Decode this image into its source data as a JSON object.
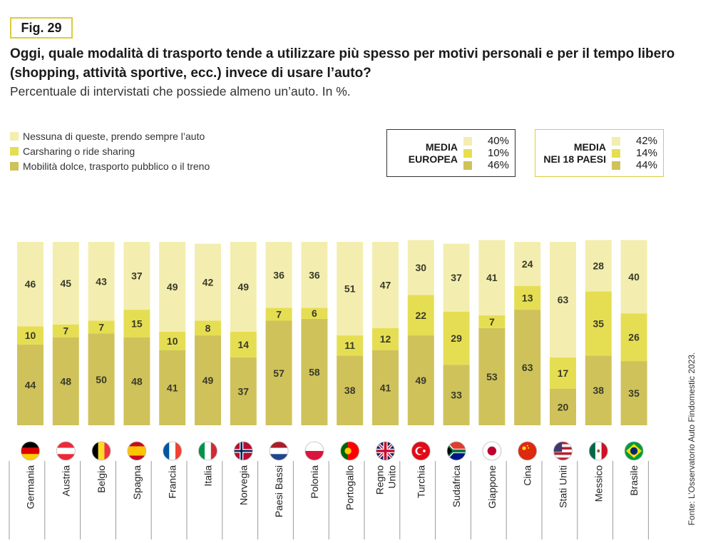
{
  "figure": {
    "badge": "Fig. 29",
    "title": "Oggi, quale modalità di trasporto tende a utilizzare più spesso per motivi personali e per il tempo libero (shopping, attività sportive, ecc.) invece di usare l’auto?",
    "subtitle": "Percentuale di intervistati che possiede almeno un’auto. In %.",
    "source": "Fonte: L’Osservatorio Auto Findomestic 2023."
  },
  "colors": {
    "nessuna": "#f3eeaf",
    "carsharing": "#e6de52",
    "dolce": "#cfc25a",
    "accent_border": "#dccb3c"
  },
  "legend": [
    {
      "label": "Nessuna di queste, prendo sempre l’auto",
      "color": "#f3eeaf"
    },
    {
      "label": "Carsharing o ride sharing",
      "color": "#e6de52"
    },
    {
      "label": "Mobilità dolce, trasporto pubblico o il treno",
      "color": "#cfc25a"
    }
  ],
  "averages": [
    {
      "label_lines": [
        "MEDIA",
        "EUROPEA"
      ],
      "values": [
        "40%",
        "10%",
        "46%"
      ]
    },
    {
      "label_lines": [
        "MEDIA",
        "NEI 18 PAESI"
      ],
      "values": [
        "42%",
        "14%",
        "44%"
      ]
    }
  ],
  "chart_data": {
    "type": "bar",
    "stacked": true,
    "orientation": "vertical",
    "categories": [
      "Germania",
      "Austria",
      "Belgio",
      "Spagna",
      "Francia",
      "Italia",
      "Norvegia",
      "Paesi Bassi",
      "Polonia",
      "Portogallo",
      "Regno Unito",
      "Turchia",
      "Sudafrica",
      "Giappone",
      "Cina",
      "Stati Uniti",
      "Messico",
      "Brasile"
    ],
    "series": [
      {
        "name": "Mobilità dolce, trasporto pubblico o il treno",
        "color": "#cfc25a",
        "values": [
          44,
          48,
          50,
          48,
          41,
          49,
          37,
          57,
          58,
          38,
          41,
          49,
          33,
          53,
          63,
          20,
          38,
          35
        ]
      },
      {
        "name": "Carsharing o ride sharing",
        "color": "#e6de52",
        "values": [
          10,
          7,
          7,
          15,
          10,
          8,
          14,
          7,
          6,
          11,
          12,
          22,
          29,
          7,
          13,
          17,
          35,
          26
        ]
      },
      {
        "name": "Nessuna di queste, prendo sempre l’auto",
        "color": "#f3eeaf",
        "values": [
          46,
          45,
          43,
          37,
          49,
          42,
          49,
          36,
          36,
          51,
          47,
          30,
          37,
          41,
          24,
          63,
          28,
          40
        ]
      }
    ],
    "flags": [
      "germany-flag-icon",
      "austria-flag-icon",
      "belgium-flag-icon",
      "spain-flag-icon",
      "france-flag-icon",
      "italy-flag-icon",
      "norway-flag-icon",
      "netherlands-flag-icon",
      "poland-flag-icon",
      "portugal-flag-icon",
      "uk-flag-icon",
      "turkey-flag-icon",
      "south-africa-flag-icon",
      "japan-flag-icon",
      "china-flag-icon",
      "usa-flag-icon",
      "mexico-flag-icon",
      "brazil-flag-icon"
    ],
    "ylim": [
      0,
      100
    ],
    "grid": false
  }
}
